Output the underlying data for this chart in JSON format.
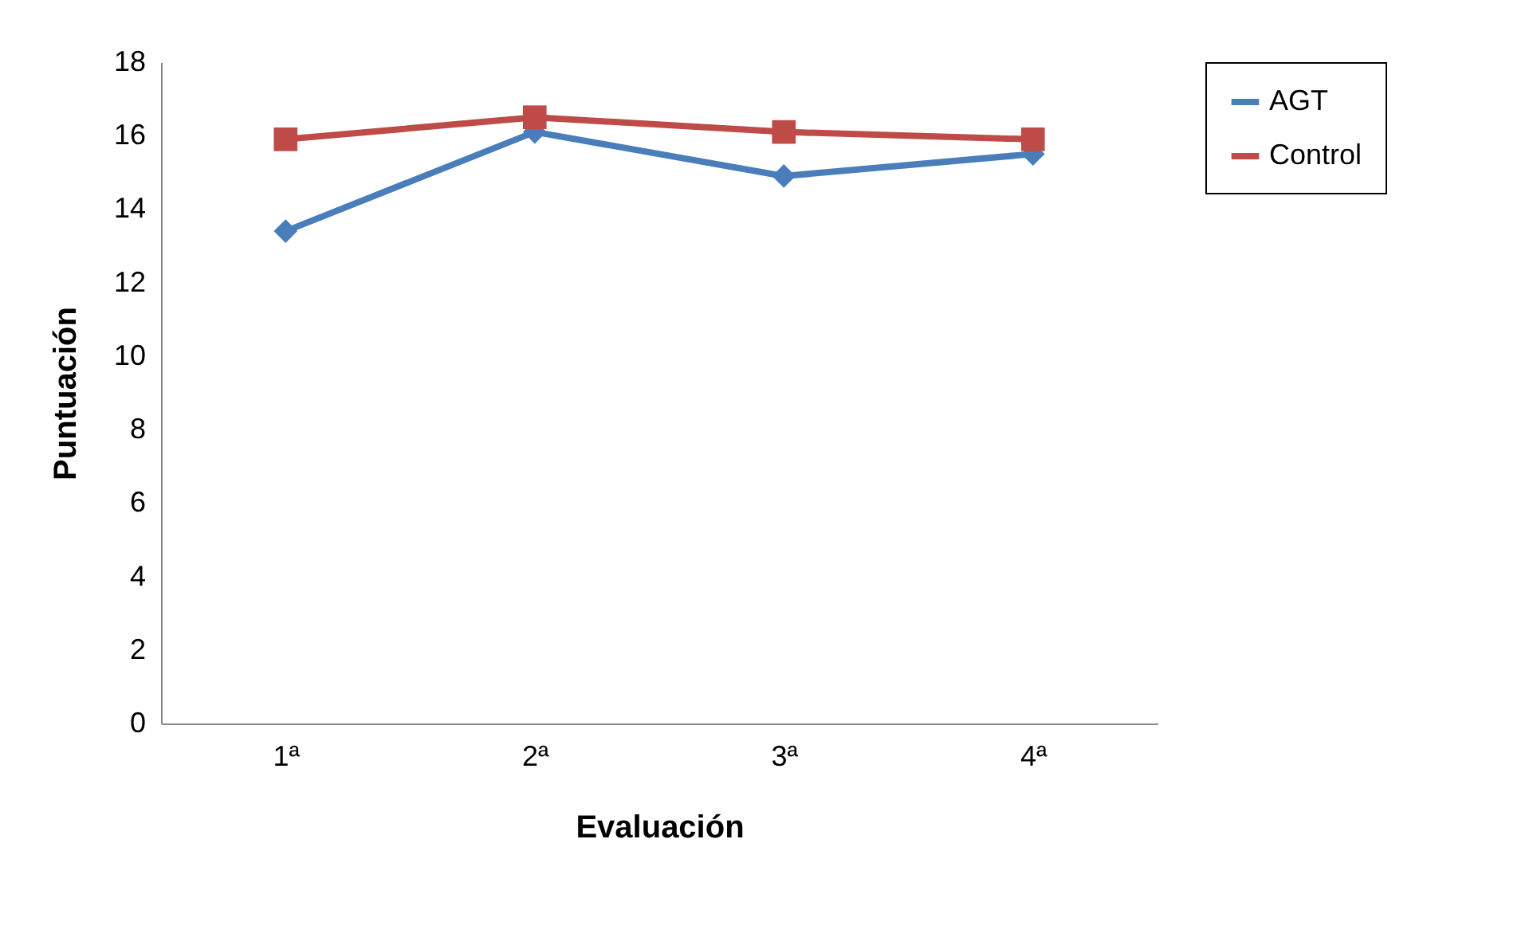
{
  "chart_data": {
    "type": "line",
    "xlabel": "Evaluación",
    "ylabel": "Puntuación",
    "categories": [
      "1ª",
      "2ª",
      "3ª",
      "4ª"
    ],
    "series": [
      {
        "name": "AGT",
        "color": "#4a7ebb",
        "marker": "diamond",
        "values": [
          13.4,
          16.1,
          14.9,
          15.5
        ]
      },
      {
        "name": "Control",
        "color": "#be4b48",
        "marker": "square",
        "values": [
          15.9,
          16.5,
          16.1,
          15.9
        ]
      }
    ],
    "ylim": [
      0,
      18
    ],
    "yticks": [
      0,
      2,
      4,
      6,
      8,
      10,
      12,
      14,
      16,
      18
    ],
    "legend": "right"
  }
}
